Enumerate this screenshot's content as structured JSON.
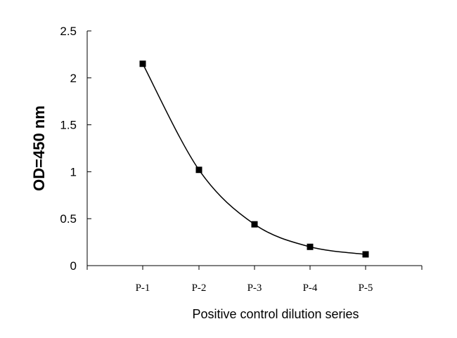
{
  "chart_data": {
    "type": "line",
    "categories": [
      "P-1",
      "P-2",
      "P-3",
      "P-4",
      "P-5"
    ],
    "series": [
      {
        "values": [
          2.15,
          1.02,
          0.44,
          0.2,
          0.12
        ],
        "color": "#000000",
        "marker": "square"
      }
    ],
    "xlabel": "Positive control dilution series",
    "ylabel": "OD=450 nm",
    "ylim": [
      0,
      2.5
    ],
    "yticks": [
      "0",
      "0.5",
      "1",
      "1.5",
      "2",
      "2.5"
    ],
    "grid": false,
    "smooth": true
  }
}
